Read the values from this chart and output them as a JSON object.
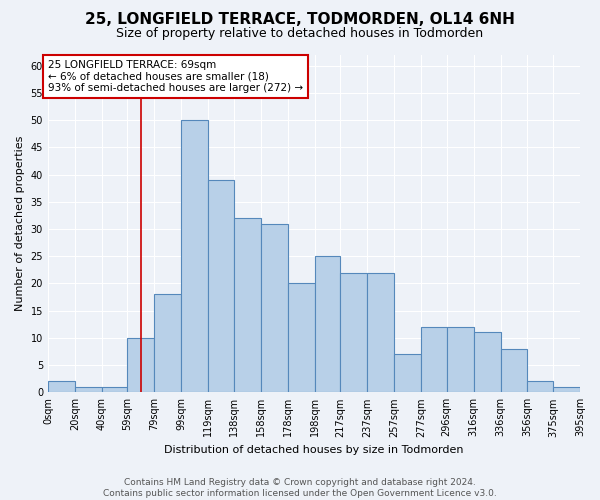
{
  "title": "25, LONGFIELD TERRACE, TODMORDEN, OL14 6NH",
  "subtitle": "Size of property relative to detached houses in Todmorden",
  "xlabel": "Distribution of detached houses by size in Todmorden",
  "ylabel": "Number of detached properties",
  "vals": [
    2,
    1,
    1,
    10,
    18,
    50,
    39,
    32,
    31,
    20,
    25,
    22,
    22,
    7,
    12,
    12,
    11,
    8,
    2,
    1
  ],
  "bin_edges": [
    0,
    20,
    40,
    59,
    79,
    99,
    119,
    138,
    158,
    178,
    198,
    217,
    237,
    257,
    277,
    296,
    316,
    336,
    356,
    375,
    395
  ],
  "bin_labels": [
    "0sqm",
    "20sqm",
    "40sqm",
    "59sqm",
    "79sqm",
    "99sqm",
    "119sqm",
    "138sqm",
    "158sqm",
    "178sqm",
    "198sqm",
    "217sqm",
    "237sqm",
    "257sqm",
    "277sqm",
    "296sqm",
    "316sqm",
    "336sqm",
    "356sqm",
    "375sqm",
    "395sqm"
  ],
  "bar_color": "#b8d0e8",
  "bar_edge_color": "#5588bb",
  "property_size": 69,
  "property_line_color": "#cc0000",
  "annotation_text": "25 LONGFIELD TERRACE: 69sqm\n← 6% of detached houses are smaller (18)\n93% of semi-detached houses are larger (272) →",
  "annotation_box_facecolor": "#ffffff",
  "annotation_box_edgecolor": "#cc0000",
  "ylim_max": 62,
  "yticks": [
    0,
    5,
    10,
    15,
    20,
    25,
    30,
    35,
    40,
    45,
    50,
    55,
    60
  ],
  "footer_line1": "Contains HM Land Registry data © Crown copyright and database right 2024.",
  "footer_line2": "Contains public sector information licensed under the Open Government Licence v3.0.",
  "bg_color": "#eef2f8",
  "grid_color": "#ffffff",
  "title_fontsize": 11,
  "subtitle_fontsize": 9,
  "axis_label_fontsize": 8,
  "tick_fontsize": 7,
  "annotation_fontsize": 7.5,
  "footer_fontsize": 6.5
}
